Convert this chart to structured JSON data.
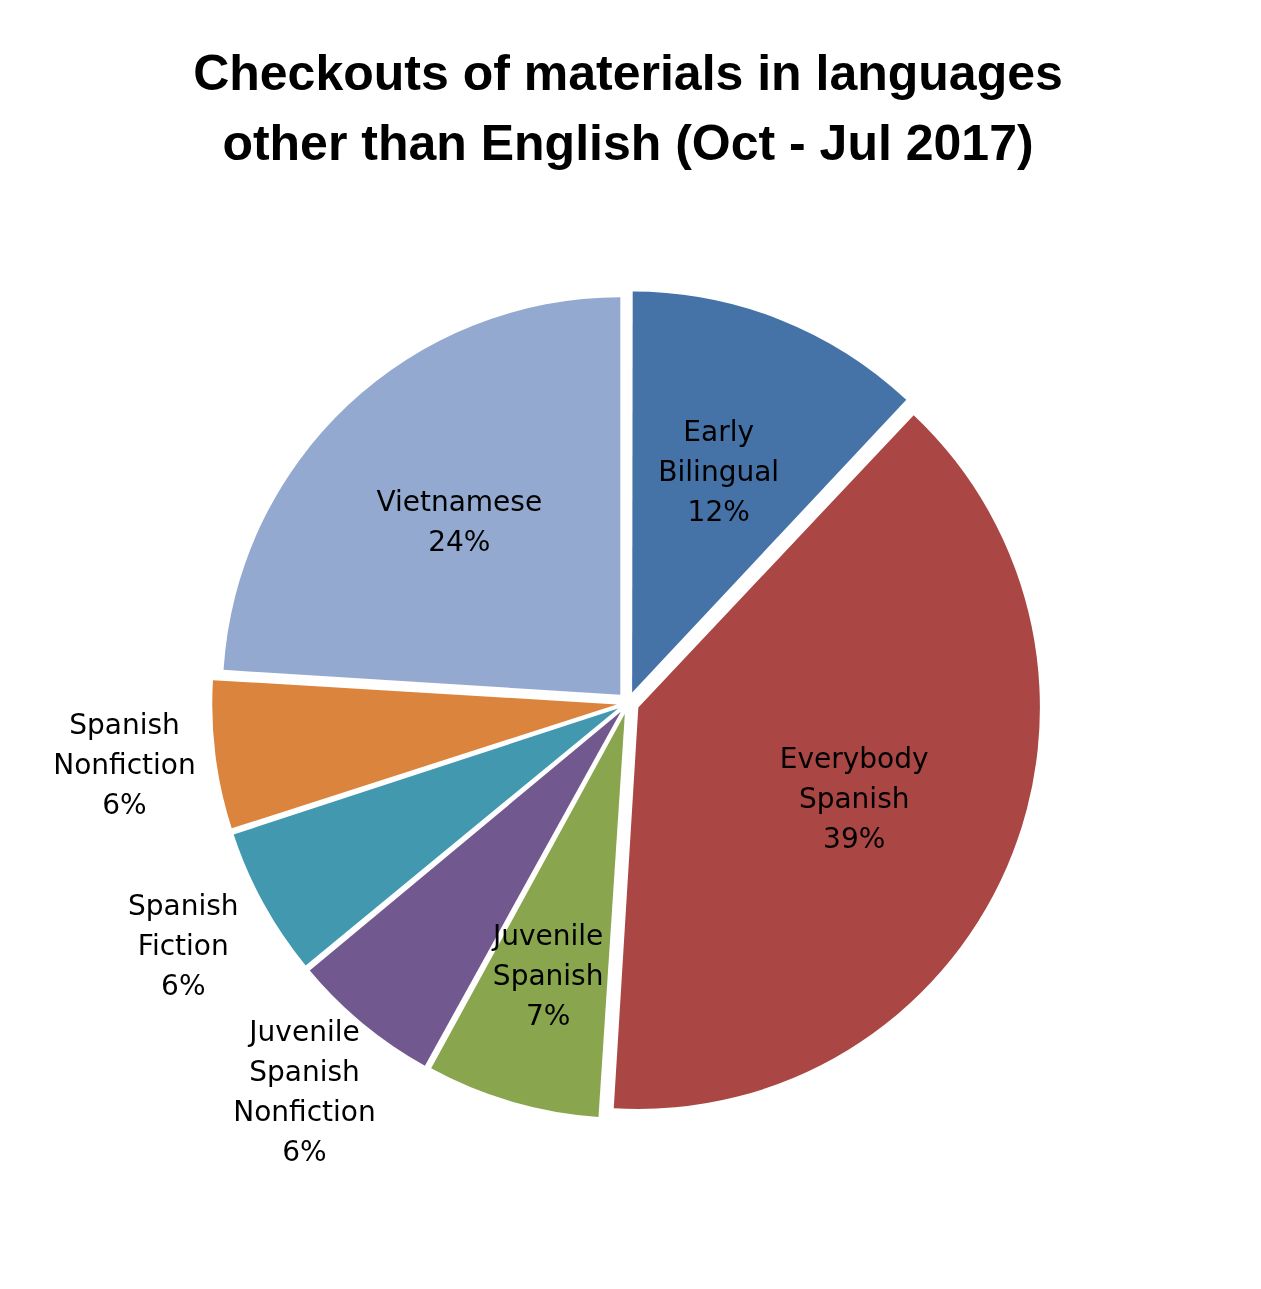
{
  "chart_data": {
    "type": "pie",
    "title": "Checkouts of materials in languages other than English (Oct - Jul 2017)",
    "categories": [
      "Early Bilingual",
      "Everybody Spanish",
      "Juvenile Spanish",
      "Juvenile Spanish Nonfiction",
      "Spanish Fiction",
      "Spanish Nonfiction",
      "Vietnamese"
    ],
    "values": [
      12,
      39,
      7,
      6,
      6,
      6,
      24
    ],
    "value_labels": [
      "12%",
      "39%",
      "7%",
      "6%",
      "6%",
      "6%",
      "24%"
    ],
    "colors": [
      "#4572a7",
      "#aa4643",
      "#89a54e",
      "#71588f",
      "#4198af",
      "#db843d",
      "#93a9cf"
    ],
    "legend": false
  }
}
